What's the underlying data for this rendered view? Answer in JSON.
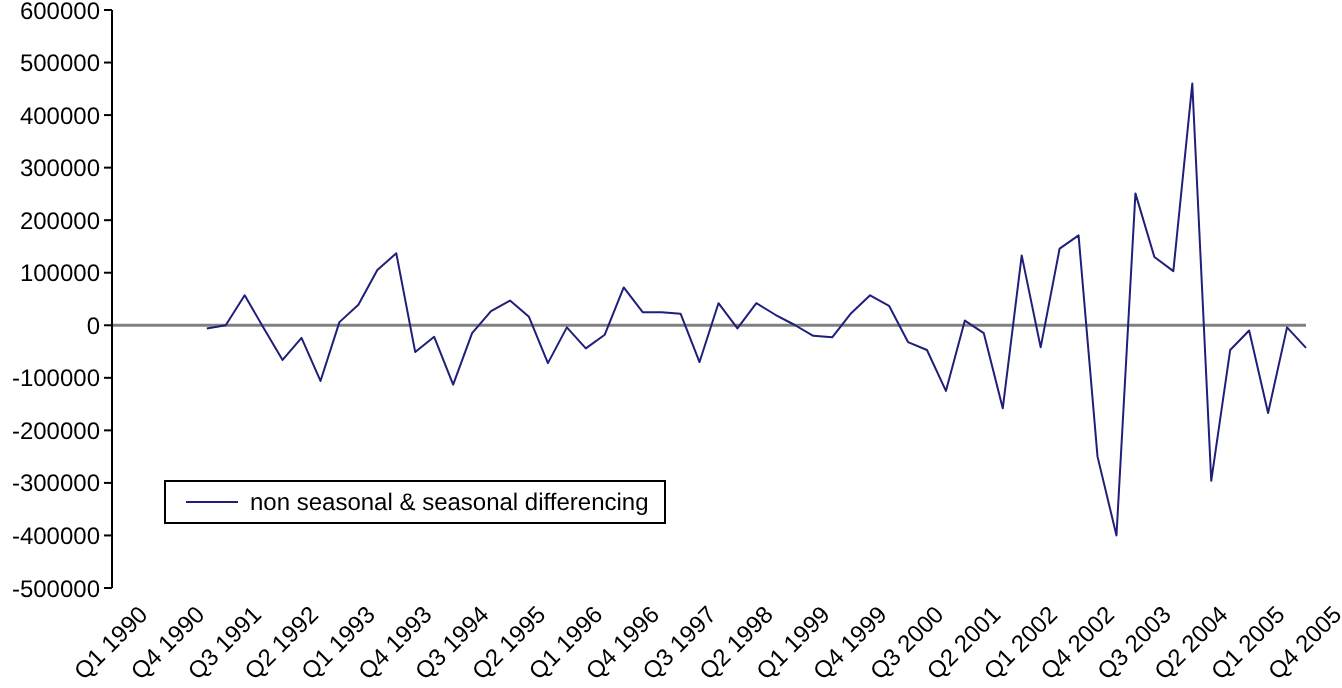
{
  "chart_data": {
    "type": "line",
    "categories": [
      "Q1 1990",
      null,
      null,
      "Q4 1990",
      null,
      null,
      "Q3 1991",
      null,
      null,
      "Q2 1992",
      null,
      null,
      "Q1 1993",
      null,
      null,
      "Q4 1993",
      null,
      null,
      "Q3 1994",
      null,
      null,
      "Q2 1995",
      null,
      null,
      "Q1 1996",
      null,
      null,
      "Q4 1996",
      null,
      null,
      "Q3 1997",
      null,
      null,
      "Q2 1998",
      null,
      null,
      "Q1 1999",
      null,
      null,
      "Q4 1999",
      null,
      null,
      "Q3 2000",
      null,
      null,
      "Q2 2001",
      null,
      null,
      "Q1 2002",
      null,
      null,
      "Q4 2002",
      null,
      null,
      "Q3 2003",
      null,
      null,
      "Q2 2004",
      null,
      null,
      "Q1 2005",
      null,
      null,
      "Q4 2005"
    ],
    "series": [
      {
        "name": "non seasonal & seasonal differencing",
        "color": "#1f1f7a",
        "values": [
          null,
          null,
          null,
          null,
          null,
          -6000,
          0,
          57000,
          -5000,
          -66000,
          -24000,
          -106000,
          6000,
          39000,
          105000,
          137000,
          -51000,
          -22000,
          -113000,
          -15000,
          27000,
          47000,
          16000,
          -72000,
          -4000,
          -44000,
          -18000,
          72000,
          25000,
          25000,
          22000,
          -70000,
          42000,
          -6000,
          42000,
          20000,
          1000,
          -20000,
          -23000,
          23000,
          57000,
          37000,
          -32000,
          -47000,
          -125000,
          9000,
          -15000,
          -158000,
          133000,
          -42000,
          146000,
          171000,
          -250000,
          -400000,
          251000,
          130000,
          103000,
          460000,
          -296000,
          -47000,
          -10000,
          -167000,
          -4000,
          -43000
        ]
      }
    ],
    "ylim": [
      -500000,
      600000
    ],
    "yticks": [
      -500000,
      -400000,
      -300000,
      -200000,
      -100000,
      0,
      100000,
      200000,
      300000,
      400000,
      500000,
      600000
    ],
    "ref_lines": [
      {
        "axis": "y",
        "value": 0,
        "color": "#808080"
      }
    ],
    "grid": false,
    "legend": "bottom left",
    "marker": "none",
    "line_style": "solid"
  }
}
